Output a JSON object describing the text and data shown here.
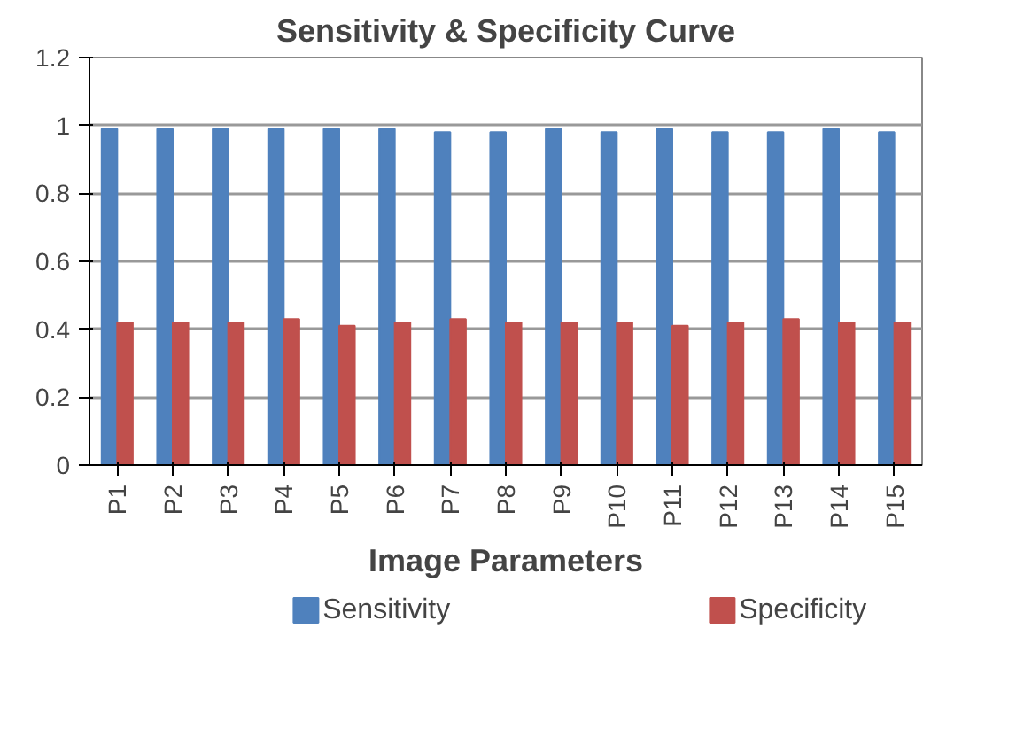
{
  "chart_data": {
    "type": "bar",
    "title": "Sensitivity & Specificity Curve",
    "xlabel": "Image Parameters",
    "categories": [
      "P1",
      "P2",
      "P3",
      "P4",
      "P5",
      "P6",
      "P7",
      "P8",
      "P9",
      "P10",
      "P11",
      "P12",
      "P13",
      "P14",
      "P15"
    ],
    "series": [
      {
        "name": "Sensitivity",
        "color": "#4f81bd",
        "values": [
          0.99,
          0.99,
          0.99,
          0.99,
          0.99,
          0.99,
          0.98,
          0.98,
          0.99,
          0.98,
          0.99,
          0.98,
          0.98,
          0.99,
          0.98
        ]
      },
      {
        "name": "Specificity",
        "color": "#c0504d",
        "values": [
          0.42,
          0.42,
          0.42,
          0.43,
          0.41,
          0.42,
          0.43,
          0.42,
          0.42,
          0.42,
          0.41,
          0.42,
          0.43,
          0.42,
          0.42
        ]
      }
    ],
    "ylim": [
      0,
      1.2
    ],
    "yticks": [
      0,
      0.2,
      0.4,
      0.6,
      0.8,
      1,
      1.2
    ],
    "grid": "y",
    "legend": "bottom"
  }
}
